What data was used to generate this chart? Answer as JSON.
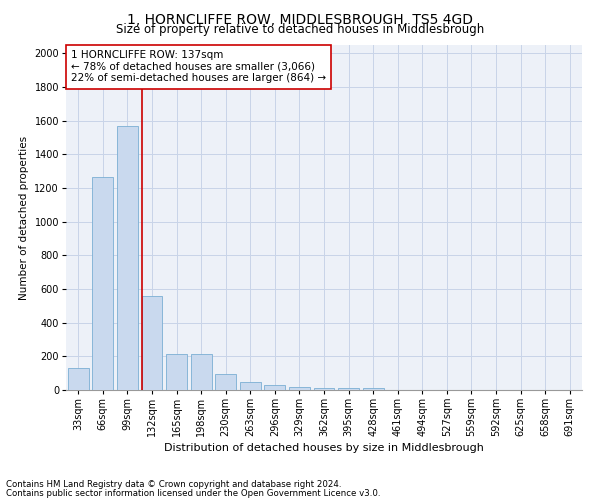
{
  "title": "1, HORNCLIFFE ROW, MIDDLESBROUGH, TS5 4GD",
  "subtitle": "Size of property relative to detached houses in Middlesbrough",
  "xlabel": "Distribution of detached houses by size in Middlesbrough",
  "ylabel": "Number of detached properties",
  "footnote1": "Contains HM Land Registry data © Crown copyright and database right 2024.",
  "footnote2": "Contains public sector information licensed under the Open Government Licence v3.0.",
  "property_label": "1 HORNCLIFFE ROW: 137sqm",
  "annotation_line1": "← 78% of detached houses are smaller (3,066)",
  "annotation_line2": "22% of semi-detached houses are larger (864) →",
  "vline_bin_idx": 3,
  "categories": [
    "33sqm",
    "66sqm",
    "99sqm",
    "132sqm",
    "165sqm",
    "198sqm",
    "230sqm",
    "263sqm",
    "296sqm",
    "329sqm",
    "362sqm",
    "395sqm",
    "428sqm",
    "461sqm",
    "494sqm",
    "527sqm",
    "559sqm",
    "592sqm",
    "625sqm",
    "658sqm",
    "691sqm"
  ],
  "values": [
    130,
    1265,
    1570,
    560,
    215,
    215,
    95,
    45,
    28,
    20,
    13,
    13,
    10,
    0,
    0,
    0,
    0,
    0,
    0,
    0,
    0
  ],
  "bar_color": "#c9d9ee",
  "bar_edge_color": "#7bafd4",
  "vline_color": "#cc0000",
  "ylim": [
    0,
    2050
  ],
  "yticks": [
    0,
    200,
    400,
    600,
    800,
    1000,
    1200,
    1400,
    1600,
    1800,
    2000
  ],
  "grid_color": "#c8d4e8",
  "bg_color": "#edf1f8",
  "title_fontsize": 10,
  "subtitle_fontsize": 8.5,
  "xlabel_fontsize": 8,
  "ylabel_fontsize": 7.5,
  "tick_fontsize": 7,
  "annotation_fontsize": 7.5
}
